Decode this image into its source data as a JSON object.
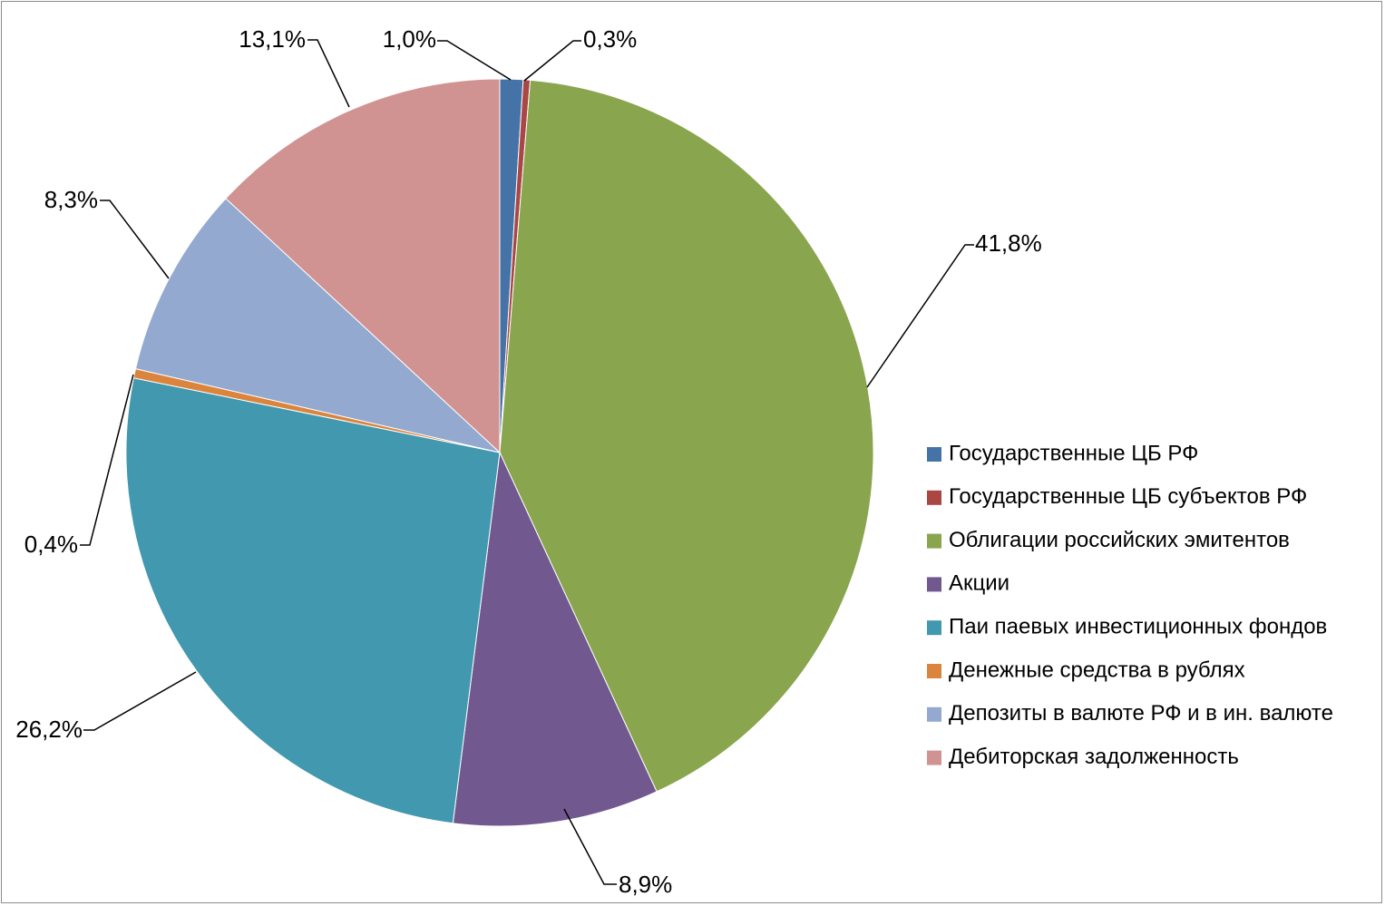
{
  "chart_data": {
    "type": "pie",
    "title": "",
    "start_angle_deg": 0,
    "direction": "clockwise",
    "legend_position": "right",
    "slices": [
      {
        "name": "Государственные ЦБ РФ",
        "value": 1.0,
        "label": "1,0%",
        "color": "#4572A7"
      },
      {
        "name": "Государственные ЦБ субъектов РФ",
        "value": 0.3,
        "label": "0,3%",
        "color": "#AA4643"
      },
      {
        "name": "Облигации российских эмитентов",
        "value": 41.8,
        "label": "41,8%",
        "color": "#89A54E"
      },
      {
        "name": "Акции",
        "value": 8.9,
        "label": "8,9%",
        "color": "#71588F"
      },
      {
        "name": "Паи паевых инвестиционных фондов",
        "value": 26.2,
        "label": "26,2%",
        "color": "#4198AF"
      },
      {
        "name": "Денежные средства в рублях",
        "value": 0.4,
        "label": "0,4%",
        "color": "#DB843D"
      },
      {
        "name": "Депозиты в валюте РФ и в ин. валюте",
        "value": 8.3,
        "label": "8,3%",
        "color": "#93A9CF"
      },
      {
        "name": "Дебиторская задолженность",
        "value": 13.1,
        "label": "13,1%",
        "color": "#D19392"
      }
    ]
  }
}
